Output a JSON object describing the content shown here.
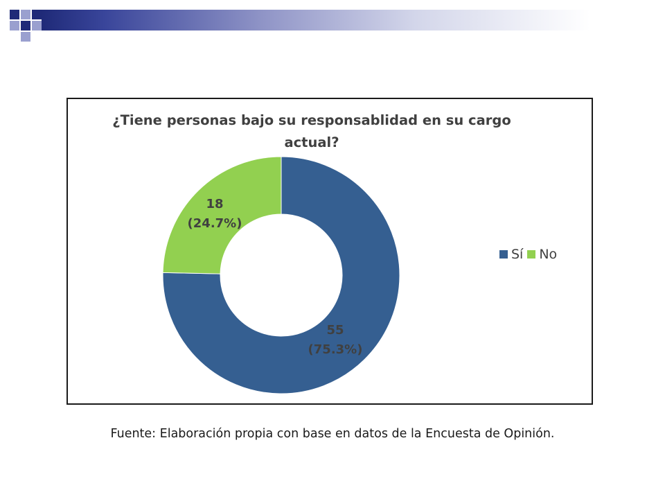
{
  "slide": {
    "source_note": "Fuente: Elaboración propia con base en datos de la Encuesta de Opinión."
  },
  "colors": {
    "header_dark": "#1f2a78",
    "header_light": "#9aa0cf",
    "si": "#355f91",
    "no": "#92d050",
    "text": "#404040"
  },
  "chart_data": {
    "type": "pie",
    "variant": "donut",
    "title_lines": [
      "¿Tiene personas bajo su responsablidad en su cargo",
      "actual?"
    ],
    "legend_position": "right",
    "series": [
      {
        "name": "Sí",
        "value": 55,
        "percent": 75.3,
        "label_value": "55",
        "label_pct": "(75.3%)",
        "color": "#355f91"
      },
      {
        "name": "No",
        "value": 18,
        "percent": 24.7,
        "label_value": "18",
        "label_pct": "(24.7%)",
        "color": "#92d050"
      }
    ]
  }
}
